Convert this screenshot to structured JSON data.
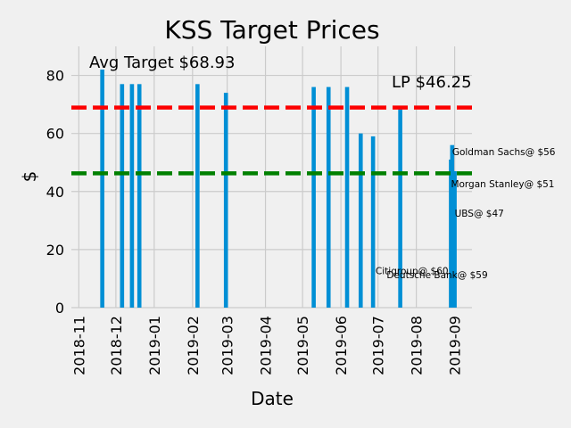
{
  "chart_data": {
    "type": "bar",
    "title": "KSS Target Prices",
    "xlabel": "Date",
    "ylabel": "$",
    "x_range": [
      "2018-10-26",
      "2019-09-15"
    ],
    "ylim": [
      0,
      90
    ],
    "grid": true,
    "x_ticks": [
      "2018-11",
      "2018-12",
      "2019-01",
      "2019-02",
      "2019-03",
      "2019-04",
      "2019-05",
      "2019-06",
      "2019-07",
      "2019-08",
      "2019-09"
    ],
    "y_ticks": [
      0,
      20,
      40,
      60,
      80
    ],
    "bar_color": "#008fd5",
    "series": [
      {
        "x": [
          "2018-11-20",
          "2018-12-06",
          "2018-12-14",
          "2018-12-20",
          "2019-02-05",
          "2019-02-28",
          "2019-05-10",
          "2019-05-22",
          "2019-06-06",
          "2019-06-17",
          "2019-06-27",
          "2019-07-19",
          "2019-08-29",
          "2019-08-30",
          "2019-09-01"
        ],
        "values": [
          82,
          77,
          77,
          77,
          77,
          74,
          76,
          76,
          76,
          60,
          59,
          69,
          51,
          56,
          47
        ]
      }
    ],
    "reference_lines": [
      {
        "label": "Avg Target $68.93",
        "value": 68.93,
        "color": "#fc0000"
      },
      {
        "label": "LP $46.25",
        "value": 46.25,
        "color": "#008000"
      }
    ],
    "annotations": [
      {
        "text": "Goldman Sachs@ $56",
        "x": "2019-08-30",
        "y": 52.5
      },
      {
        "text": "Morgan Stanley@ $51",
        "x": "2019-08-29",
        "y": 41.5
      },
      {
        "text": "UBS@ $47",
        "x": "2019-09-01",
        "y": 31.3
      },
      {
        "text": "Citigroup@ $60",
        "x": "2019-06-29",
        "y": 11.5
      },
      {
        "text": "Deutsche Bank@ $59",
        "x": "2019-07-08",
        "y": 10.2
      }
    ]
  }
}
